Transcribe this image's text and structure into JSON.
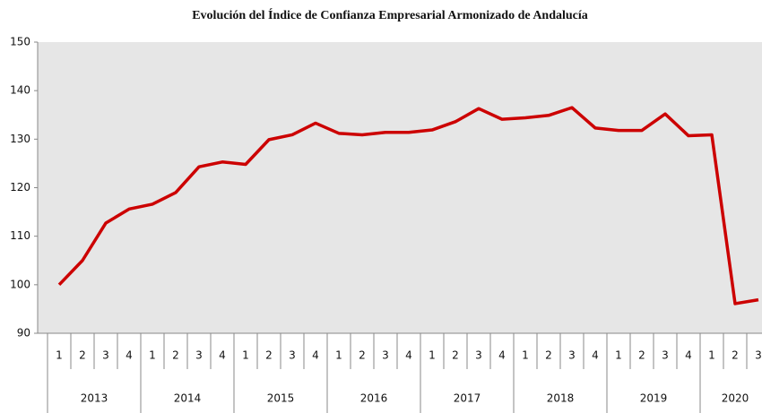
{
  "chart_data": {
    "type": "line",
    "title": "Evolución del Índice de Confianza Empresarial Armonizado de Andalucía",
    "categories": [
      "1",
      "2",
      "3",
      "4",
      "1",
      "2",
      "3",
      "4",
      "1",
      "2",
      "3",
      "4",
      "1",
      "2",
      "3",
      "4",
      "1",
      "2",
      "3",
      "4",
      "1",
      "2",
      "3",
      "4",
      "1",
      "2",
      "3",
      "4",
      "1",
      "2",
      "3"
    ],
    "x_groups": [
      "2013",
      "2014",
      "2015",
      "2016",
      "2017",
      "2018",
      "2019",
      "2020"
    ],
    "series": [
      {
        "color": "#cc0000",
        "values": [
          100,
          105,
          112.7,
          115.6,
          116.6,
          119,
          124.3,
          125.3,
          124.8,
          129.9,
          130.9,
          133.3,
          131.2,
          130.9,
          131.4,
          131.4,
          131.9,
          133.6,
          136.3,
          134.1,
          134.4,
          134.9,
          136.5,
          132.3,
          131.8,
          131.8,
          135.2,
          130.7,
          130.9,
          96.1,
          96.9
        ]
      }
    ],
    "ylim": [
      90,
      150
    ],
    "yticks": [
      90,
      100,
      110,
      120,
      130,
      140,
      150
    ],
    "grid": false
  }
}
